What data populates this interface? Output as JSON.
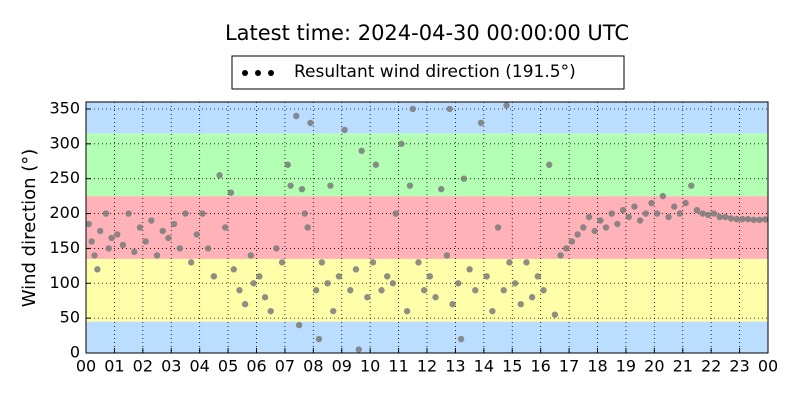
{
  "chart_data": {
    "type": "scatter",
    "title": "Latest time: 2024-04-30 00:00:00 UTC",
    "ylabel": "Wind direction (°)",
    "xlim": [
      0,
      24
    ],
    "ylim": [
      0,
      360
    ],
    "xticks": [
      {
        "value": 0,
        "label": "00"
      },
      {
        "value": 1,
        "label": "01"
      },
      {
        "value": 2,
        "label": "02"
      },
      {
        "value": 3,
        "label": "03"
      },
      {
        "value": 4,
        "label": "04"
      },
      {
        "value": 5,
        "label": "05"
      },
      {
        "value": 6,
        "label": "06"
      },
      {
        "value": 7,
        "label": "07"
      },
      {
        "value": 8,
        "label": "08"
      },
      {
        "value": 9,
        "label": "09"
      },
      {
        "value": 10,
        "label": "10"
      },
      {
        "value": 11,
        "label": "11"
      },
      {
        "value": 12,
        "label": "12"
      },
      {
        "value": 13,
        "label": "13"
      },
      {
        "value": 14,
        "label": "14"
      },
      {
        "value": 15,
        "label": "15"
      },
      {
        "value": 16,
        "label": "16"
      },
      {
        "value": 17,
        "label": "17"
      },
      {
        "value": 18,
        "label": "18"
      },
      {
        "value": 19,
        "label": "19"
      },
      {
        "value": 20,
        "label": "20"
      },
      {
        "value": 21,
        "label": "21"
      },
      {
        "value": 22,
        "label": "22"
      },
      {
        "value": 23,
        "label": "23"
      },
      {
        "value": 24,
        "label": "00"
      }
    ],
    "yticks": [
      0,
      50,
      100,
      150,
      200,
      250,
      300,
      350
    ],
    "grid": true,
    "bands": [
      {
        "from": 0,
        "to": 45,
        "color": "#bbddff"
      },
      {
        "from": 45,
        "to": 135,
        "color": "#ffffaa"
      },
      {
        "from": 135,
        "to": 225,
        "color": "#ffb3b8"
      },
      {
        "from": 225,
        "to": 315,
        "color": "#b3ffb3"
      },
      {
        "from": 315,
        "to": 360,
        "color": "#bbddff"
      }
    ],
    "legend_marker_color": "#000000",
    "series": [
      {
        "name": "Resultant wind direction (191.5°)",
        "color": "#7a7a7a",
        "x": [
          0.1,
          0.2,
          0.3,
          0.4,
          0.5,
          0.7,
          0.8,
          0.9,
          1.1,
          1.3,
          1.5,
          1.7,
          1.9,
          2.1,
          2.3,
          2.5,
          2.7,
          2.9,
          3.1,
          3.3,
          3.5,
          3.7,
          3.9,
          4.1,
          4.3,
          4.5,
          4.7,
          4.9,
          5.1,
          5.2,
          5.4,
          5.6,
          5.8,
          5.9,
          6.1,
          6.3,
          6.5,
          6.7,
          6.9,
          7.1,
          7.2,
          7.4,
          7.6,
          7.7,
          7.8,
          7.9,
          7.5,
          8.1,
          8.3,
          8.5,
          8.7,
          8.9,
          8.2,
          8.6,
          9.1,
          9.3,
          9.5,
          9.7,
          9.9,
          9.6,
          10.1,
          10.2,
          10.4,
          10.6,
          10.8,
          10.9,
          11.1,
          11.3,
          11.5,
          11.7,
          11.9,
          11.4,
          12.1,
          12.3,
          12.5,
          12.7,
          12.9,
          12.8,
          13.1,
          13.3,
          13.5,
          13.7,
          13.9,
          13.2,
          14.1,
          14.3,
          14.5,
          14.7,
          14.9,
          14.8,
          15.1,
          15.3,
          15.5,
          15.7,
          15.9,
          16.1,
          16.3,
          16.5,
          16.7,
          16.9,
          17.1,
          17.3,
          17.5,
          17.7,
          17.9,
          18.1,
          18.3,
          18.5,
          18.7,
          18.9,
          19.1,
          19.3,
          19.5,
          19.7,
          19.9,
          20.1,
          20.3,
          20.5,
          20.7,
          20.9,
          21.1,
          21.3,
          21.5,
          21.7,
          21.9,
          22.1,
          22.3,
          22.5,
          22.7,
          22.9,
          23.1,
          23.3,
          23.5,
          23.7,
          23.9
        ],
        "values": [
          185,
          160,
          140,
          120,
          175,
          200,
          150,
          165,
          170,
          155,
          200,
          145,
          180,
          160,
          190,
          140,
          175,
          165,
          185,
          150,
          200,
          130,
          170,
          200,
          150,
          110,
          255,
          180,
          230,
          120,
          90,
          70,
          140,
          100,
          110,
          80,
          60,
          150,
          130,
          270,
          240,
          340,
          235,
          200,
          180,
          330,
          40,
          90,
          130,
          100,
          60,
          110,
          20,
          240,
          320,
          90,
          120,
          290,
          80,
          5,
          130,
          270,
          90,
          110,
          100,
          200,
          300,
          60,
          350,
          130,
          90,
          240,
          110,
          80,
          235,
          140,
          70,
          350,
          100,
          250,
          120,
          90,
          330,
          20,
          110,
          60,
          180,
          90,
          130,
          355,
          100,
          70,
          130,
          80,
          110,
          90,
          270,
          55,
          140,
          150,
          160,
          170,
          180,
          195,
          175,
          190,
          180,
          200,
          185,
          205,
          195,
          210,
          190,
          200,
          215,
          200,
          225,
          195,
          210,
          200,
          215,
          240,
          205,
          200,
          198,
          200,
          195,
          195,
          193,
          192,
          192,
          192,
          191,
          191,
          191.5
        ]
      }
    ]
  }
}
